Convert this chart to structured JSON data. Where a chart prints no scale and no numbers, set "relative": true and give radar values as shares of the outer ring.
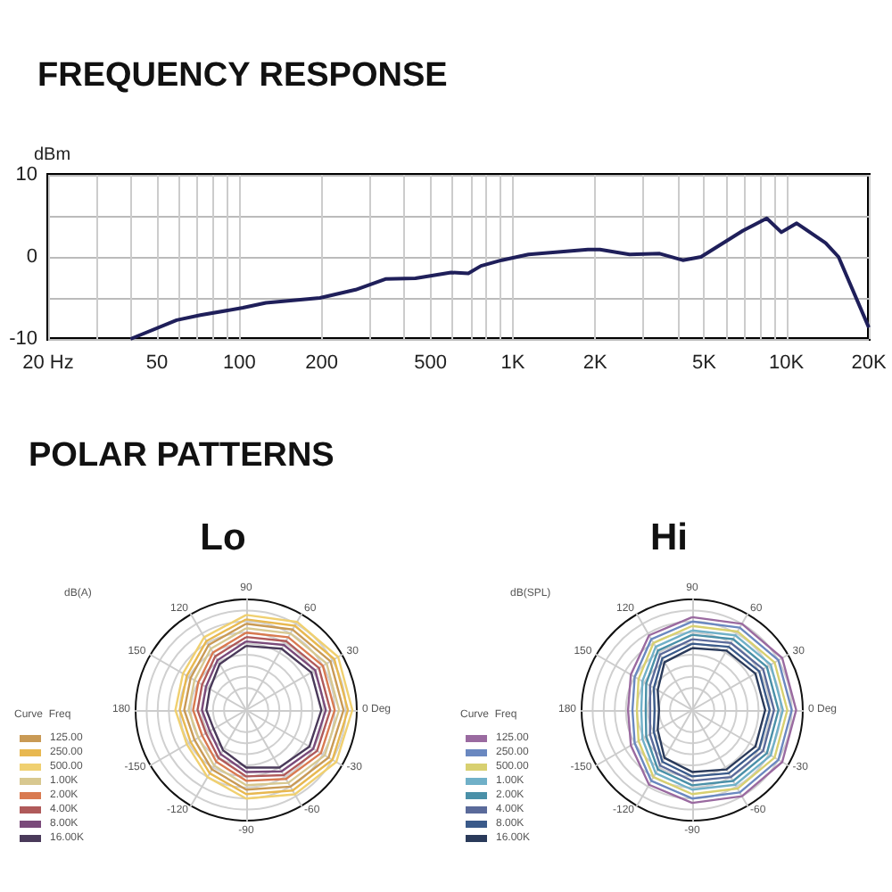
{
  "chart_data": [
    {
      "type": "line",
      "title": "FREQUENCY RESPONSE",
      "ylabel": "dBm",
      "log": "x",
      "grid": true,
      "legend": false,
      "xlim": [
        20,
        20000
      ],
      "ylim": [
        -10,
        10
      ],
      "xticks": [
        {
          "value": 20,
          "label": "20 Hz"
        },
        {
          "value": 30,
          "label": null
        },
        {
          "value": 40,
          "label": null
        },
        50,
        {
          "value": 60,
          "label": null
        },
        {
          "value": 70,
          "label": null
        },
        {
          "value": 80,
          "label": null
        },
        {
          "value": 90,
          "label": null
        },
        100,
        200,
        {
          "value": 300,
          "label": null
        },
        {
          "value": 400,
          "label": null
        },
        500,
        {
          "value": 600,
          "label": null
        },
        {
          "value": 700,
          "label": null
        },
        {
          "value": 800,
          "label": null
        },
        {
          "value": 900,
          "label": null
        },
        {
          "value": 1000,
          "label": "1K"
        },
        {
          "value": 2000,
          "label": "2K"
        },
        {
          "value": 3000,
          "label": null
        },
        {
          "value": 4000,
          "label": null
        },
        {
          "value": 5000,
          "label": "5K"
        },
        {
          "value": 6000,
          "label": null
        },
        {
          "value": 7000,
          "label": null
        },
        {
          "value": 8000,
          "label": null
        },
        {
          "value": 9000,
          "label": null
        },
        {
          "value": 10000,
          "label": "10K"
        },
        {
          "value": 20000,
          "label": "20K"
        }
      ],
      "yticks": [
        -10,
        {
          "value": -5,
          "label": null
        },
        0,
        {
          "value": 5,
          "label": null
        },
        10
      ],
      "x": [
        40,
        59,
        72,
        103,
        125,
        197,
        266,
        342,
        440,
        594,
        687,
        764,
        910,
        1140,
        1880,
        2080,
        2670,
        3440,
        4180,
        4870,
        6940,
        8470,
        9580,
        10900,
        13900,
        15500,
        20000
      ],
      "series": [
        {
          "color": "#1f1f5a",
          "values": [
            -10,
            -7.7,
            -7.1,
            -6.2,
            -5.6,
            -5,
            -4,
            -2.7,
            -2.6,
            -1.9,
            -2,
            -1.1,
            -0.4,
            0.3,
            0.9,
            0.9,
            0.3,
            0.4,
            -0.4,
            0,
            3.2,
            4.7,
            3,
            4.1,
            1.7,
            0,
            -8.6
          ]
        }
      ]
    },
    {
      "type": "radar",
      "title": "Lo",
      "annotations": [
        "POLAR PATTERNS"
      ],
      "ylabel": "dB(A)",
      "legend_title": "Curve  Freq",
      "legend": "left",
      "relative": true,
      "grid": true,
      "categories": [
        "90",
        "60",
        "30",
        "0 Deg",
        "-30",
        "-60",
        "-90",
        "-120",
        "-150",
        "180",
        "150",
        "120"
      ],
      "series": [
        {
          "name": "125.00",
          "color": "#c99a55",
          "values": [
            0.78,
            0.84,
            0.88,
            0.88,
            0.86,
            0.8,
            0.72,
            0.62,
            0.54,
            0.56,
            0.58,
            0.68
          ]
        },
        {
          "name": "250.00",
          "color": "#e8b850",
          "values": [
            0.82,
            0.88,
            0.92,
            0.92,
            0.9,
            0.84,
            0.76,
            0.66,
            0.58,
            0.6,
            0.62,
            0.72
          ]
        },
        {
          "name": "500.00",
          "color": "#f0d070",
          "values": [
            0.86,
            0.92,
            0.96,
            0.96,
            0.94,
            0.88,
            0.8,
            0.7,
            0.62,
            0.64,
            0.66,
            0.76
          ]
        },
        {
          "name": "1.00K",
          "color": "#d8c890",
          "values": [
            0.74,
            0.8,
            0.84,
            0.84,
            0.82,
            0.76,
            0.68,
            0.58,
            0.5,
            0.52,
            0.54,
            0.64
          ]
        },
        {
          "name": "2.00K",
          "color": "#d97a50",
          "values": [
            0.7,
            0.76,
            0.8,
            0.8,
            0.78,
            0.72,
            0.64,
            0.54,
            0.46,
            0.48,
            0.5,
            0.6
          ]
        },
        {
          "name": "4.00K",
          "color": "#b05a5a",
          "values": [
            0.66,
            0.72,
            0.76,
            0.76,
            0.74,
            0.68,
            0.6,
            0.5,
            0.42,
            0.44,
            0.46,
            0.56
          ]
        },
        {
          "name": "8.00K",
          "color": "#7a4a7a",
          "values": [
            0.62,
            0.68,
            0.72,
            0.72,
            0.7,
            0.64,
            0.56,
            0.46,
            0.38,
            0.4,
            0.42,
            0.52
          ]
        },
        {
          "name": "16.00K",
          "color": "#4a3a5a",
          "values": [
            0.58,
            0.64,
            0.68,
            0.68,
            0.66,
            0.6,
            0.52,
            0.42,
            0.34,
            0.36,
            0.38,
            0.48
          ]
        }
      ]
    },
    {
      "type": "radar",
      "title": "Hi",
      "ylabel": "dB(SPL)",
      "legend_title": "Curve  Freq",
      "legend": "left",
      "relative": true,
      "grid": true,
      "categories": [
        "90",
        "60",
        "30",
        "0 Deg",
        "-30",
        "-60",
        "-90",
        "-120",
        "-150",
        "180",
        "150",
        "120"
      ],
      "series": [
        {
          "name": "125.00",
          "color": "#9a6aa0",
          "values": [
            0.84,
            0.9,
            0.94,
            0.94,
            0.94,
            0.9,
            0.84,
            0.78,
            0.64,
            0.58,
            0.64,
            0.78
          ]
        },
        {
          "name": "250.00",
          "color": "#6a88c0",
          "values": [
            0.8,
            0.86,
            0.9,
            0.9,
            0.9,
            0.86,
            0.8,
            0.74,
            0.6,
            0.54,
            0.6,
            0.74
          ]
        },
        {
          "name": "500.00",
          "color": "#d8d070",
          "values": [
            0.76,
            0.82,
            0.86,
            0.86,
            0.86,
            0.82,
            0.76,
            0.7,
            0.56,
            0.5,
            0.56,
            0.7
          ]
        },
        {
          "name": "1.00K",
          "color": "#70b0c8",
          "values": [
            0.72,
            0.78,
            0.82,
            0.82,
            0.82,
            0.78,
            0.72,
            0.66,
            0.52,
            0.46,
            0.52,
            0.66
          ]
        },
        {
          "name": "2.00K",
          "color": "#4a90a8",
          "values": [
            0.68,
            0.74,
            0.78,
            0.78,
            0.78,
            0.74,
            0.68,
            0.62,
            0.48,
            0.42,
            0.48,
            0.62
          ]
        },
        {
          "name": "4.00K",
          "color": "#5a6a9a",
          "values": [
            0.64,
            0.7,
            0.74,
            0.74,
            0.74,
            0.7,
            0.64,
            0.58,
            0.44,
            0.38,
            0.44,
            0.58
          ]
        },
        {
          "name": "8.00K",
          "color": "#3a5a8a",
          "values": [
            0.6,
            0.66,
            0.7,
            0.7,
            0.7,
            0.66,
            0.6,
            0.54,
            0.4,
            0.34,
            0.4,
            0.54
          ]
        },
        {
          "name": "16.00K",
          "color": "#2a3a5a",
          "values": [
            0.56,
            0.62,
            0.66,
            0.66,
            0.66,
            0.62,
            0.56,
            0.5,
            0.36,
            0.3,
            0.36,
            0.5
          ]
        }
      ]
    }
  ]
}
